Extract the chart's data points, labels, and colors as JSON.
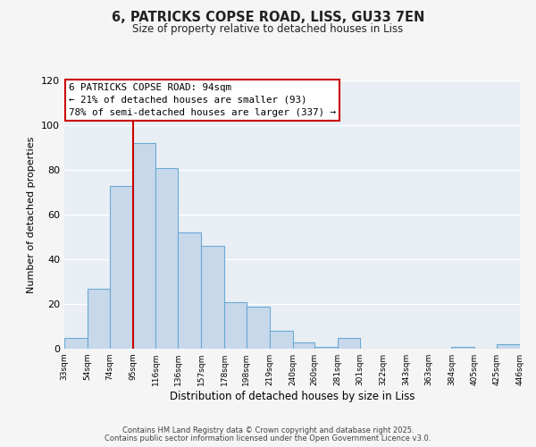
{
  "title_line1": "6, PATRICKS COPSE ROAD, LISS, GU33 7EN",
  "title_line2": "Size of property relative to detached houses in Liss",
  "xlabel": "Distribution of detached houses by size in Liss",
  "ylabel": "Number of detached properties",
  "bar_color": "#c8d8eb",
  "bar_edge_color": "#6aaad4",
  "background_color": "#e8eef4",
  "grid_color": "#ffffff",
  "bin_edges": [
    33,
    54,
    74,
    95,
    116,
    136,
    157,
    178,
    198,
    219,
    240,
    260,
    281,
    301,
    322,
    343,
    363,
    384,
    405,
    425,
    446
  ],
  "bin_labels": [
    "33sqm",
    "54sqm",
    "74sqm",
    "95sqm",
    "116sqm",
    "136sqm",
    "157sqm",
    "178sqm",
    "198sqm",
    "219sqm",
    "240sqm",
    "260sqm",
    "281sqm",
    "301sqm",
    "322sqm",
    "343sqm",
    "363sqm",
    "384sqm",
    "405sqm",
    "425sqm",
    "446sqm"
  ],
  "counts": [
    5,
    27,
    73,
    92,
    81,
    52,
    46,
    21,
    19,
    8,
    3,
    1,
    5,
    0,
    0,
    0,
    0,
    1,
    0,
    2
  ],
  "vline_x": 95,
  "vline_color": "#cc0000",
  "annotation_title": "6 PATRICKS COPSE ROAD: 94sqm",
  "annotation_line2": "← 21% of detached houses are smaller (93)",
  "annotation_line3": "78% of semi-detached houses are larger (337) →",
  "annotation_box_color": "#ffffff",
  "annotation_box_edge": "#cc0000",
  "ylim": [
    0,
    120
  ],
  "yticks": [
    0,
    20,
    40,
    60,
    80,
    100,
    120
  ],
  "footer_line1": "Contains HM Land Registry data © Crown copyright and database right 2025.",
  "footer_line2": "Contains public sector information licensed under the Open Government Licence v3.0.",
  "fig_bg": "#f5f5f5"
}
